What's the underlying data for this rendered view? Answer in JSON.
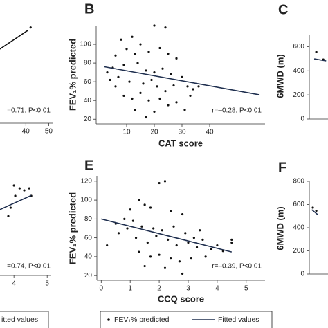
{
  "chart_data": [
    {
      "type": "scatter",
      "xlim": [
        0,
        52
      ],
      "ylim": [
        0,
        105
      ],
      "xticks": [
        40,
        50
      ],
      "annotation": "=0.71, P<0.01",
      "series": [
        {
          "mode": "markers",
          "color": "#111111",
          "x": [
            42.1
          ],
          "values": [
            103
          ]
        },
        {
          "mode": "line",
          "color": "#111111",
          "x": [
            20,
            41
          ],
          "values": [
            65.6,
            100
          ]
        }
      ]
    },
    {
      "type": "scatter",
      "panel_label": "B",
      "xlabel": "CAT score",
      "ylabel": "FEV₁% predicted",
      "xlim": [
        -1,
        60
      ],
      "ylim": [
        15,
        120
      ],
      "xticks": [
        10,
        20,
        30,
        40
      ],
      "yticks": [
        20,
        40,
        60,
        80,
        100
      ],
      "annotation": "r=–0.28, P<0.01",
      "series": [
        {
          "name": "FEV₁% predicted",
          "mode": "markers",
          "color": "#111111",
          "x": [
            8,
            12,
            15,
            20,
            24,
            6,
            10,
            13,
            18,
            22,
            25,
            28,
            5,
            9,
            14,
            17,
            20,
            23,
            26,
            30,
            3,
            7,
            11,
            16,
            19,
            21,
            24,
            27,
            32,
            34,
            9,
            12,
            15,
            18,
            22,
            25,
            28,
            31,
            13,
            20,
            17,
            33,
            36,
            4,
            6
          ],
          "values": [
            105,
            108,
            100,
            120,
            118,
            88,
            95,
            90,
            92,
            96,
            90,
            85,
            75,
            78,
            80,
            72,
            70,
            74,
            68,
            65,
            70,
            65,
            60,
            58,
            62,
            55,
            50,
            56,
            55,
            52,
            45,
            42,
            48,
            40,
            42,
            35,
            38,
            30,
            30,
            28,
            22,
            45,
            55,
            62,
            55
          ]
        },
        {
          "name": "Fitted values",
          "mode": "line",
          "color": "#1f2f4f",
          "x": [
            2,
            58
          ],
          "values": [
            76,
            46
          ]
        }
      ]
    },
    {
      "type": "scatter",
      "panel_label": "C",
      "ylabel": "6MWD (m)",
      "xlim": [
        0,
        50
      ],
      "ylim": [
        0,
        700
      ],
      "yticks": [
        0,
        200,
        400,
        600
      ],
      "series": [
        {
          "mode": "markers",
          "color": "#111111",
          "x": [
            2,
            4
          ],
          "values": [
            556,
            493
          ]
        },
        {
          "mode": "line",
          "color": "#1f2f4f",
          "x": [
            1.4,
            4.8
          ],
          "values": [
            499,
            482
          ]
        }
      ]
    },
    {
      "type": "scatter",
      "xlim": [
        0,
        5.1
      ],
      "ylim": [
        0,
        100
      ],
      "xticks": [
        4,
        5
      ],
      "annotation": "=0.74, P<0.01",
      "series": [
        {
          "mode": "markers",
          "color": "#111111",
          "x": [
            4.0,
            4.17,
            4.04,
            3.83,
            3.9,
            4.31,
            4.46,
            4.52
          ],
          "values": [
            95.6,
            92.6,
            84.6,
            63,
            72,
            90.4,
            92.6,
            84.6
          ]
        },
        {
          "mode": "line",
          "color": "#1f2f4f",
          "x": [
            3.58,
            4.52
          ],
          "values": [
            70,
            85
          ]
        }
      ]
    },
    {
      "type": "scatter",
      "panel_label": "E",
      "xlabel": "CCQ score",
      "ylabel": "FEV₁% predicted",
      "xlim": [
        -0.15,
        5.65
      ],
      "ylim": [
        15,
        125
      ],
      "xticks": [
        0,
        1,
        2,
        3,
        4,
        5
      ],
      "yticks": [
        20,
        40,
        60,
        80,
        100,
        120
      ],
      "annotation": "r=–0.39, P<0.01",
      "series": [
        {
          "mode": "markers",
          "color": "#111111",
          "x": [
            1.3,
            1.5,
            2.0,
            2.2,
            1.0,
            1.7,
            2.4,
            2.8,
            0.2,
            0.5,
            0.8,
            1.1,
            1.4,
            1.8,
            2.1,
            2.5,
            2.9,
            3.2,
            3.5,
            0.6,
            1.2,
            1.6,
            1.9,
            2.3,
            2.6,
            3.0,
            3.3,
            3.8,
            4.2,
            4.5,
            1.3,
            1.7,
            2.0,
            2.4,
            2.7,
            3.1,
            3.6,
            1.5,
            2.2,
            2.8,
            0.9,
            3.4,
            4.0,
            4.5
          ],
          "values": [
            100,
            95,
            118,
            120,
            90,
            92,
            88,
            85,
            52,
            75,
            80,
            78,
            72,
            70,
            68,
            72,
            65,
            60,
            58,
            65,
            60,
            55,
            62,
            58,
            52,
            55,
            50,
            48,
            46,
            55,
            45,
            40,
            42,
            38,
            35,
            38,
            40,
            30,
            28,
            22,
            70,
            68,
            52,
            58
          ]
        },
        {
          "mode": "line",
          "color": "#1f2f4f",
          "x": [
            0,
            4.5
          ],
          "values": [
            80,
            45
          ]
        }
      ]
    },
    {
      "type": "scatter",
      "panel_label": "F",
      "ylabel": "6MWD (m)",
      "xlim": [
        0,
        50
      ],
      "ylim": [
        0,
        800
      ],
      "yticks": [
        0,
        200,
        400,
        600,
        800
      ],
      "series": [
        {
          "mode": "markers",
          "color": "#111111",
          "x": [
            1,
            2
          ],
          "values": [
            573,
            546
          ]
        },
        {
          "mode": "line",
          "color": "#1f2f4f",
          "x": [
            0.7,
            2.4
          ],
          "values": [
            555,
            513
          ]
        }
      ]
    }
  ],
  "legend_fragment": "itted values"
}
